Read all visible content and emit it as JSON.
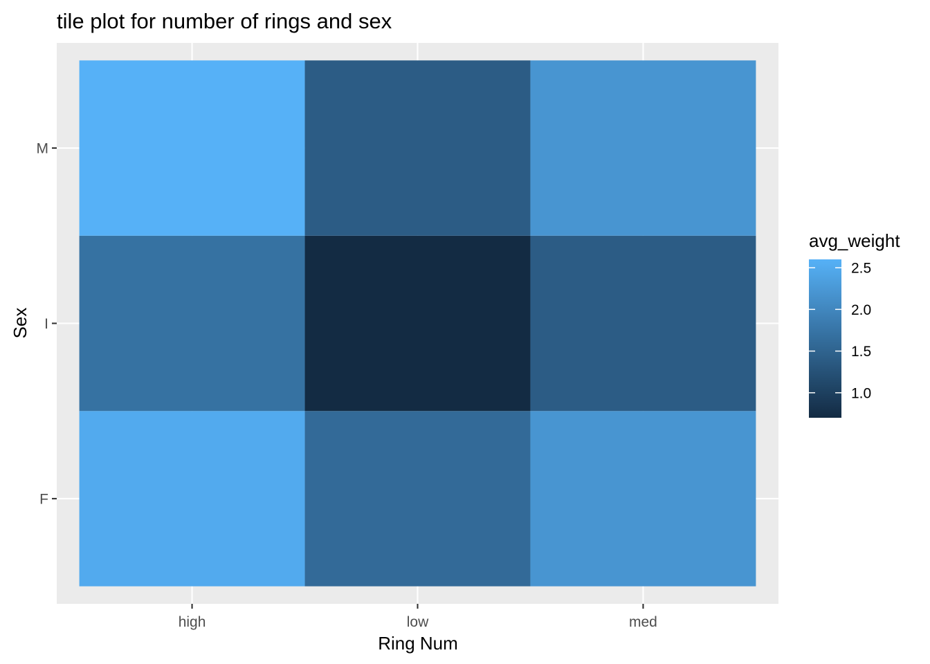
{
  "chart_data": {
    "type": "heatmap",
    "title": "tile plot for number of rings and sex",
    "xlabel": "Ring Num",
    "ylabel": "Sex",
    "x_categories": [
      "high",
      "low",
      "med"
    ],
    "y_categories": [
      "F",
      "I",
      "M"
    ],
    "values": [
      [
        2.5,
        1.6,
        2.2
      ],
      [
        1.7,
        0.7,
        1.4
      ],
      [
        2.6,
        1.4,
        2.2
      ]
    ],
    "color_scale": {
      "name": "avg_weight",
      "min": 0.7,
      "max": 2.6,
      "low_color": "#132b43",
      "high_color": "#56b1f7",
      "breaks": [
        1.0,
        1.5,
        2.0,
        2.5
      ],
      "break_labels": [
        "1.0",
        "1.5",
        "2.0",
        "2.5"
      ]
    },
    "panel_background": "#ebebeb",
    "grid": true,
    "legend_position": "right"
  }
}
